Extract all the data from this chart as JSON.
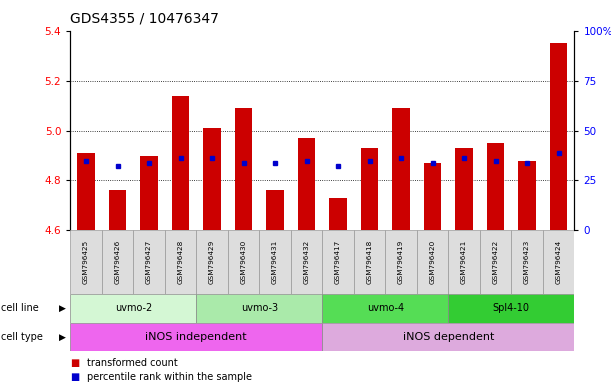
{
  "title": "GDS4355 / 10476347",
  "samples": [
    "GSM796425",
    "GSM796426",
    "GSM796427",
    "GSM796428",
    "GSM796429",
    "GSM796430",
    "GSM796431",
    "GSM796432",
    "GSM796417",
    "GSM796418",
    "GSM796419",
    "GSM796420",
    "GSM796421",
    "GSM796422",
    "GSM796423",
    "GSM796424"
  ],
  "bar_values": [
    4.91,
    4.76,
    4.9,
    5.14,
    5.01,
    5.09,
    4.76,
    4.97,
    4.73,
    4.93,
    5.09,
    4.87,
    4.93,
    4.95,
    4.88,
    5.35
  ],
  "blue_dot_values": [
    4.88,
    4.86,
    4.87,
    4.89,
    4.89,
    4.87,
    4.87,
    4.88,
    4.86,
    4.88,
    4.89,
    4.87,
    4.89,
    4.88,
    4.87,
    4.91
  ],
  "ymin": 4.6,
  "ymax": 5.4,
  "yticks_left": [
    4.6,
    4.8,
    5.0,
    5.2,
    5.4
  ],
  "yticks_right_labels": [
    "0",
    "25",
    "50",
    "75",
    "100%"
  ],
  "yticks_right_vals": [
    0,
    25,
    50,
    75,
    100
  ],
  "bar_color": "#cc0000",
  "dot_color": "#0000cc",
  "cell_lines": [
    {
      "label": "uvmo-2",
      "start": 0,
      "end": 3,
      "color": "#d4f7d4"
    },
    {
      "label": "uvmo-3",
      "start": 4,
      "end": 7,
      "color": "#aaeaaa"
    },
    {
      "label": "uvmo-4",
      "start": 8,
      "end": 11,
      "color": "#55dd55"
    },
    {
      "label": "Spl4-10",
      "start": 12,
      "end": 15,
      "color": "#33cc33"
    }
  ],
  "cell_types": [
    {
      "label": "iNOS independent",
      "start": 0,
      "end": 7,
      "color": "#ee66ee"
    },
    {
      "label": "iNOS dependent",
      "start": 8,
      "end": 15,
      "color": "#ddaadd"
    }
  ],
  "legend_bar_label": "transformed count",
  "legend_dot_label": "percentile rank within the sample",
  "title_fontsize": 10,
  "bar_width": 0.55
}
